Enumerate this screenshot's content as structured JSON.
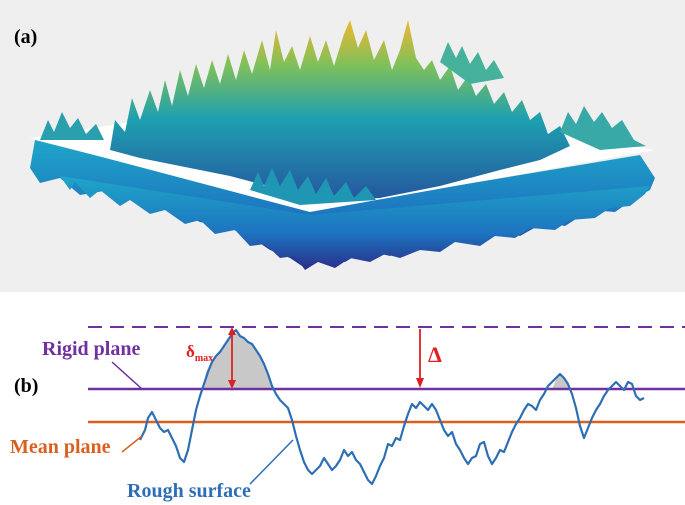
{
  "panel_a": {
    "label": "(a)"
  },
  "panel_b": {
    "label": "(b)",
    "rigid_plane_label": "Rigid plane",
    "mean_plane_label": "Mean plane",
    "rough_surface_label": "Rough surface",
    "delta_max_symbol": "δ",
    "delta_max_subscript": "max",
    "delta_label": "Δ"
  },
  "colors": {
    "rigid_plane": "#7030a0",
    "mean_plane": "#d9601e",
    "rough_surface": "#2e6eb5",
    "arrow": "#e02020",
    "contact_fill": "#c8c8c8",
    "surface_low": "#2a3aa0",
    "surface_mid": "#1fa3b8",
    "surface_high": "#f0b930"
  },
  "icons": {
    "surface_render": "3d-rough-surface-icon"
  }
}
